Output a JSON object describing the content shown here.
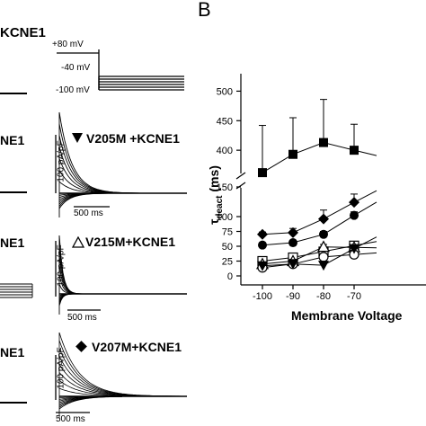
{
  "panel_a": {
    "header_label": "KCNE1",
    "protocol": {
      "v_hold": "+80 mV",
      "v_mid": "-40 mV",
      "v_low": "-100 mV"
    },
    "rows": [
      {
        "label": "V205M +KCNE1",
        "left_label": "NE1",
        "marker": "down-triangle",
        "scale_y": "100 pA/pF",
        "scale_x": "500 ms"
      },
      {
        "label": "V215M+KCNE1",
        "left_label": "NE1",
        "marker": "open-triangle",
        "scale_y": "100 pA/pF",
        "scale_x": "500 ms"
      },
      {
        "label": "V207M+KCNE1",
        "left_label": "NE1",
        "marker": "diamond",
        "scale_y": "100 pA/pF",
        "scale_x": "500 ms"
      }
    ]
  },
  "panel_b": {
    "panel_letter": "B",
    "x_axis_label": "Membrane Voltage",
    "y_axis_label_main": "τ",
    "y_axis_label_sub": "deact",
    "y_axis_label_unit": "(ms)"
  },
  "chart_data": {
    "type": "scatter",
    "x": [
      -100,
      -90,
      -80,
      -70
    ],
    "x_ticks": [
      "-100",
      "-90",
      "-80",
      "-70"
    ],
    "y_ticks_lower": [
      "0",
      "25",
      "50",
      "75",
      "100",
      "150"
    ],
    "y_ticks_upper": [
      "400",
      "450",
      "500"
    ],
    "y_axis_break": true,
    "xlabel": "Membrane Voltage",
    "ylabel": "τdeact (ms)",
    "series": [
      {
        "marker": "filled-square",
        "values": [
          362,
          393,
          413,
          400
        ],
        "err": [
          80,
          62,
          73,
          44
        ]
      },
      {
        "marker": "filled-diamond",
        "values": [
          70,
          73,
          96,
          124
        ],
        "err": [
          4,
          7,
          15,
          14
        ]
      },
      {
        "marker": "filled-circle",
        "values": [
          52,
          56,
          70,
          102
        ],
        "err": [
          3,
          4,
          5,
          6
        ]
      },
      {
        "marker": "open-square",
        "values": [
          25,
          31,
          41,
          51
        ],
        "err": [
          3,
          3,
          4,
          4
        ]
      },
      {
        "marker": "open-triangle",
        "values": [
          20,
          25,
          49,
          48
        ],
        "err": [
          3,
          3,
          4,
          4
        ]
      },
      {
        "marker": "open-circle",
        "values": [
          14,
          20,
          32,
          36
        ],
        "err": [
          2,
          3,
          3,
          3
        ]
      },
      {
        "marker": "filled-down-triangle",
        "values": [
          17,
          20,
          18,
          46
        ],
        "err": [
          2,
          3,
          3,
          4
        ]
      }
    ]
  }
}
